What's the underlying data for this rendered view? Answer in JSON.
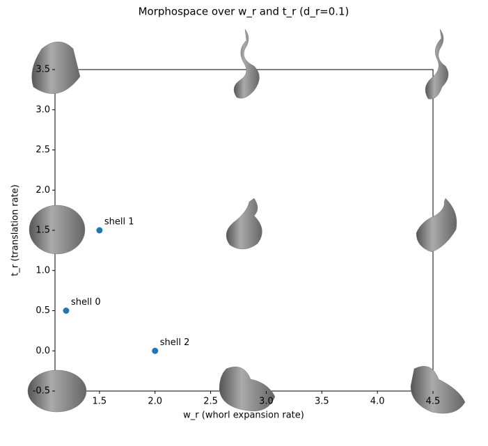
{
  "chart_data": {
    "type": "scatter",
    "title": "Morphospace over w_r and t_r (d_r=0.1)",
    "x_label": "w_r (whorl expansion rate)",
    "y_label": "t_r (translation rate)",
    "x": [
      1.2,
      1.5,
      2.0
    ],
    "series": [
      {
        "color": "#1f77b4",
        "values": [
          0.5,
          1.5,
          0.0
        ]
      }
    ],
    "point_labels": [
      "shell 0",
      "shell 1",
      "shell 2"
    ],
    "xlim": [
      1.1,
      4.5
    ],
    "xticks": [
      1.5,
      {
        "value": 2,
        "label": "2.0"
      },
      2.5,
      {
        "value": 3,
        "label": "3.0"
      },
      3.5,
      {
        "value": 4,
        "label": "4.0"
      },
      4.5
    ],
    "ylim": [
      -0.5,
      3.5
    ],
    "yticks": [
      -0.5,
      {
        "value": 0,
        "label": "0.0"
      },
      0.5,
      {
        "value": 1,
        "label": "1.0"
      },
      1.5,
      {
        "value": 2,
        "label": "2.0"
      },
      2.5,
      {
        "value": 3,
        "label": "3.0"
      },
      3.5
    ],
    "grid": false
  }
}
